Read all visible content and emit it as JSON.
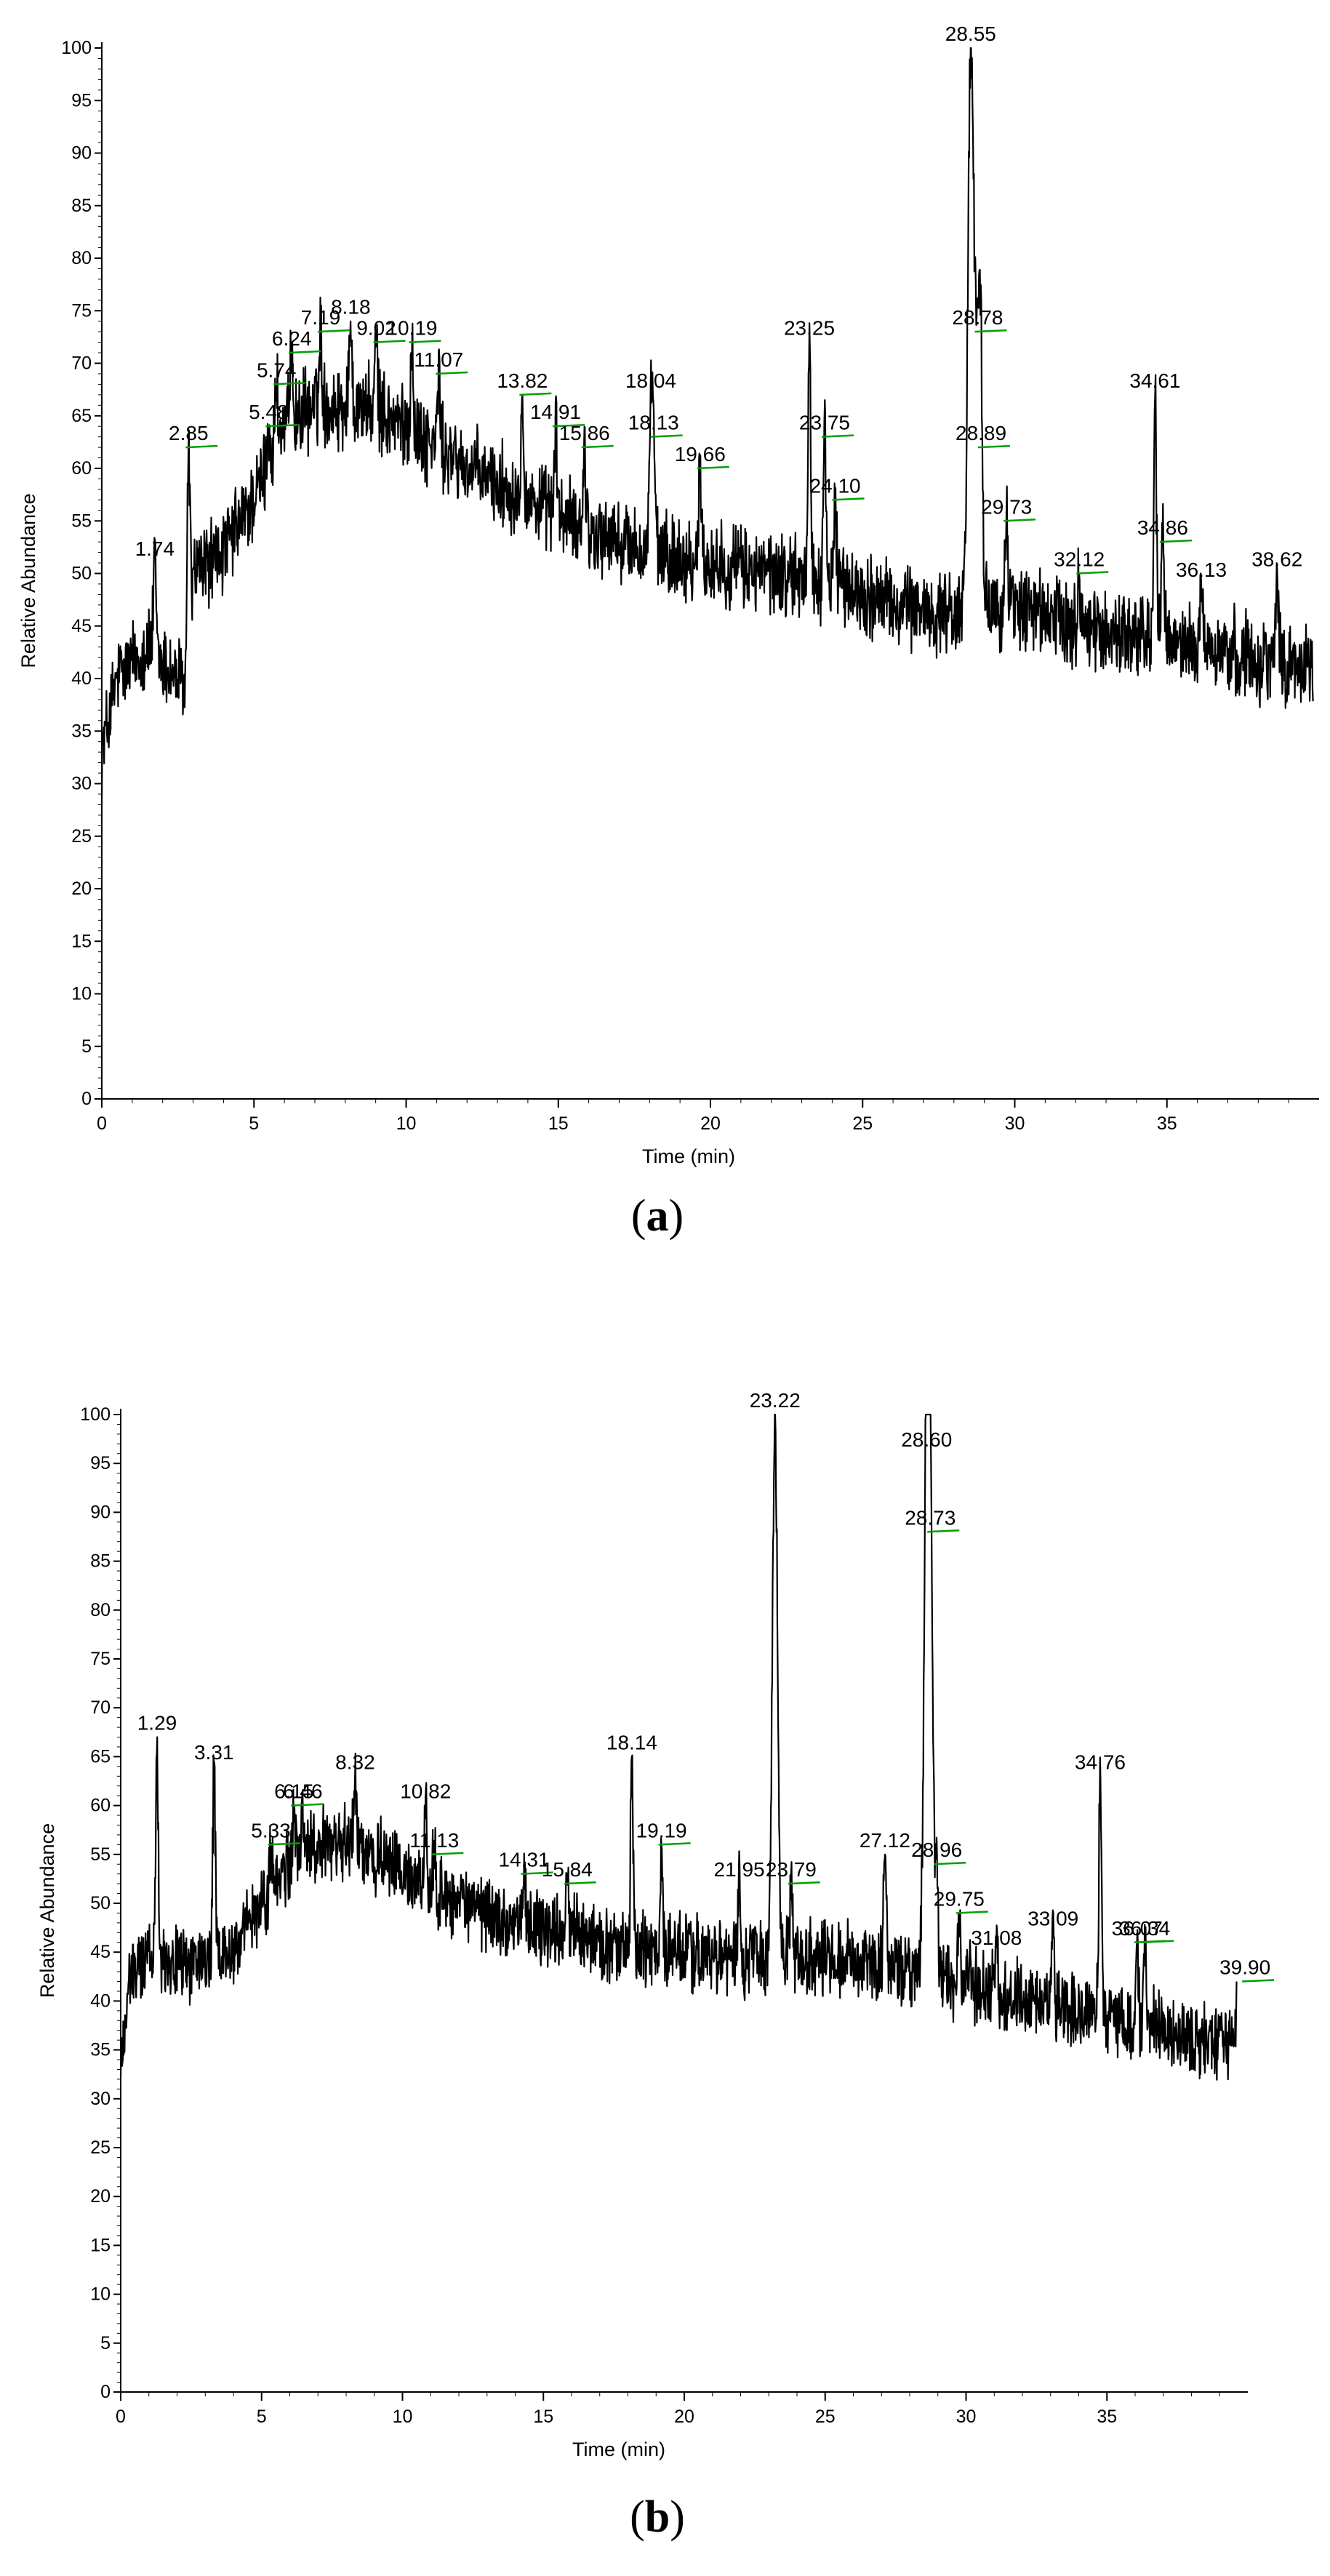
{
  "figure": {
    "colors": {
      "trace": "#000000",
      "marker": "#00a000",
      "axis": "#000000"
    }
  },
  "chart_data": [
    {
      "panel": "(a)",
      "panel_parts": {
        "open": "(",
        "letter": "a",
        "close": ")"
      },
      "type": "line",
      "xlabel": "Time (min)",
      "ylabel": "Relative Abundance",
      "xlim": [
        0,
        40
      ],
      "ylim": [
        0,
        100
      ],
      "x_ticks": [
        0,
        5,
        10,
        15,
        20,
        25,
        30,
        35
      ],
      "y_ticks": [
        0,
        5,
        10,
        15,
        20,
        25,
        30,
        35,
        40,
        45,
        50,
        55,
        60,
        65,
        70,
        75,
        80,
        85,
        90,
        95,
        100
      ],
      "baseline_points": [
        [
          0,
          33
        ],
        [
          0.5,
          40
        ],
        [
          1.5,
          43
        ],
        [
          2.5,
          40
        ],
        [
          2.8,
          39
        ],
        [
          3.0,
          50
        ],
        [
          4.0,
          52
        ],
        [
          5.0,
          57
        ],
        [
          6.0,
          64
        ],
        [
          7.0,
          66
        ],
        [
          8.5,
          66
        ],
        [
          10.0,
          64
        ],
        [
          12.0,
          60
        ],
        [
          14.0,
          57
        ],
        [
          16.0,
          54
        ],
        [
          18.0,
          52
        ],
        [
          20.0,
          51
        ],
        [
          22.0,
          50
        ],
        [
          24.0,
          49
        ],
        [
          26.0,
          47
        ],
        [
          28.0,
          46
        ],
        [
          30.0,
          47
        ],
        [
          32.0,
          45
        ],
        [
          34.0,
          44
        ],
        [
          36.0,
          43
        ],
        [
          38.0,
          42
        ],
        [
          39.8,
          41
        ]
      ],
      "noise": 3.2,
      "peaks": [
        {
          "label": "1.74",
          "rt": 1.74,
          "height": 51,
          "marker": false
        },
        {
          "label": "2.85",
          "rt": 2.85,
          "height": 62,
          "marker": true
        },
        {
          "label": "5.48",
          "rt": 5.48,
          "height": 64,
          "marker": true
        },
        {
          "label": "5.74",
          "rt": 5.74,
          "height": 68,
          "marker": true
        },
        {
          "label": "6.24",
          "rt": 6.24,
          "height": 71,
          "marker": true
        },
        {
          "label": "7.19",
          "rt": 7.19,
          "height": 73,
          "marker": true
        },
        {
          "label": "8.18",
          "rt": 8.18,
          "height": 74,
          "marker": false
        },
        {
          "label": "9.02",
          "rt": 9.02,
          "height": 72,
          "marker": true
        },
        {
          "label": "10.19",
          "rt": 10.19,
          "height": 72,
          "marker": true
        },
        {
          "label": "11.07",
          "rt": 11.07,
          "height": 69,
          "marker": true
        },
        {
          "label": "13.82",
          "rt": 13.82,
          "height": 67,
          "marker": true
        },
        {
          "label": "14.91",
          "rt": 14.91,
          "height": 64,
          "marker": true
        },
        {
          "label": "15.86",
          "rt": 15.86,
          "height": 62,
          "marker": true
        },
        {
          "label": "18.04",
          "rt": 18.04,
          "height": 67,
          "marker": false
        },
        {
          "label": "18.13",
          "rt": 18.13,
          "height": 63,
          "marker": true
        },
        {
          "label": "19.66",
          "rt": 19.66,
          "height": 60,
          "marker": true
        },
        {
          "label": "23.25",
          "rt": 23.25,
          "height": 72,
          "marker": false
        },
        {
          "label": "23.75",
          "rt": 23.75,
          "height": 63,
          "marker": true
        },
        {
          "label": "24.10",
          "rt": 24.1,
          "height": 57,
          "marker": true
        },
        {
          "label": "28.55",
          "rt": 28.55,
          "height": 100,
          "marker": false
        },
        {
          "label": "28.78",
          "rt": 28.78,
          "height": 73,
          "marker": true
        },
        {
          "label": "28.89",
          "rt": 28.89,
          "height": 62,
          "marker": true
        },
        {
          "label": "29.73",
          "rt": 29.73,
          "height": 55,
          "marker": true
        },
        {
          "label": "32.12",
          "rt": 32.12,
          "height": 50,
          "marker": true
        },
        {
          "label": "34.61",
          "rt": 34.61,
          "height": 67,
          "marker": false
        },
        {
          "label": "34.86",
          "rt": 34.86,
          "height": 53,
          "marker": true
        },
        {
          "label": "36.13",
          "rt": 36.13,
          "height": 49,
          "marker": false
        },
        {
          "label": "38.62",
          "rt": 38.62,
          "height": 50,
          "marker": false
        }
      ]
    },
    {
      "panel": "(b)",
      "panel_parts": {
        "open": "(",
        "letter": "b",
        "close": ")"
      },
      "type": "line",
      "xlabel": "Time (min)",
      "ylabel": "Relative Abundance",
      "xlim": [
        0,
        40
      ],
      "ylim": [
        0,
        100
      ],
      "x_ticks": [
        0,
        5,
        10,
        15,
        20,
        25,
        30,
        35
      ],
      "y_ticks": [
        0,
        5,
        10,
        15,
        20,
        25,
        30,
        35,
        40,
        45,
        50,
        55,
        60,
        65,
        70,
        75,
        80,
        85,
        90,
        95,
        100
      ],
      "baseline_points": [
        [
          0,
          33
        ],
        [
          0.3,
          42
        ],
        [
          1.0,
          45
        ],
        [
          2.0,
          44
        ],
        [
          3.0,
          44
        ],
        [
          4.0,
          45
        ],
        [
          5.0,
          50
        ],
        [
          6.0,
          54
        ],
        [
          7.0,
          56
        ],
        [
          8.5,
          56
        ],
        [
          10.0,
          53
        ],
        [
          12.0,
          50
        ],
        [
          14.0,
          48
        ],
        [
          16.0,
          47
        ],
        [
          18.0,
          45
        ],
        [
          20.0,
          45
        ],
        [
          22.0,
          44
        ],
        [
          24.0,
          45
        ],
        [
          26.0,
          44
        ],
        [
          28.0,
          43
        ],
        [
          30.0,
          42
        ],
        [
          32.0,
          40
        ],
        [
          34.0,
          39
        ],
        [
          36.0,
          38
        ],
        [
          38.0,
          36
        ],
        [
          39.6,
          36
        ]
      ],
      "noise": 3.0,
      "peaks": [
        {
          "label": "1.29",
          "rt": 1.29,
          "height": 67,
          "marker": false
        },
        {
          "label": "3.31",
          "rt": 3.31,
          "height": 64,
          "marker": false
        },
        {
          "label": "5.33",
          "rt": 5.33,
          "height": 56,
          "marker": true
        },
        {
          "label": "6.15",
          "rt": 6.15,
          "height": 60,
          "marker": true
        },
        {
          "label": "6.46",
          "rt": 6.46,
          "height": 60,
          "marker": false
        },
        {
          "label": "8.32",
          "rt": 8.32,
          "height": 63,
          "marker": false
        },
        {
          "label": "10.82",
          "rt": 10.82,
          "height": 60,
          "marker": false
        },
        {
          "label": "11.13",
          "rt": 11.13,
          "height": 55,
          "marker": true
        },
        {
          "label": "14.31",
          "rt": 14.31,
          "height": 53,
          "marker": true
        },
        {
          "label": "15.84",
          "rt": 15.84,
          "height": 52,
          "marker": true
        },
        {
          "label": "18.14",
          "rt": 18.14,
          "height": 65,
          "marker": false
        },
        {
          "label": "19.19",
          "rt": 19.19,
          "height": 56,
          "marker": true
        },
        {
          "label": "21.95",
          "rt": 21.95,
          "height": 52,
          "marker": false
        },
        {
          "label": "23.22",
          "rt": 23.22,
          "height": 100,
          "marker": false
        },
        {
          "label": "23.79",
          "rt": 23.79,
          "height": 52,
          "marker": true
        },
        {
          "label": "27.12",
          "rt": 27.12,
          "height": 55,
          "marker": false
        },
        {
          "label": "28.60",
          "rt": 28.6,
          "height": 96,
          "marker": false
        },
        {
          "label": "28.73",
          "rt": 28.73,
          "height": 88,
          "marker": true
        },
        {
          "label": "28.96",
          "rt": 28.96,
          "height": 54,
          "marker": true
        },
        {
          "label": "29.75",
          "rt": 29.75,
          "height": 49,
          "marker": true
        },
        {
          "label": "31.08",
          "rt": 31.08,
          "height": 45,
          "marker": false
        },
        {
          "label": "33.09",
          "rt": 33.09,
          "height": 47,
          "marker": false
        },
        {
          "label": "34.76",
          "rt": 34.76,
          "height": 63,
          "marker": false
        },
        {
          "label": "36.07",
          "rt": 36.07,
          "height": 46,
          "marker": true
        },
        {
          "label": "36.34",
          "rt": 36.34,
          "height": 46,
          "marker": true
        },
        {
          "label": "39.90",
          "rt": 39.9,
          "height": 42,
          "marker": true
        }
      ]
    }
  ]
}
